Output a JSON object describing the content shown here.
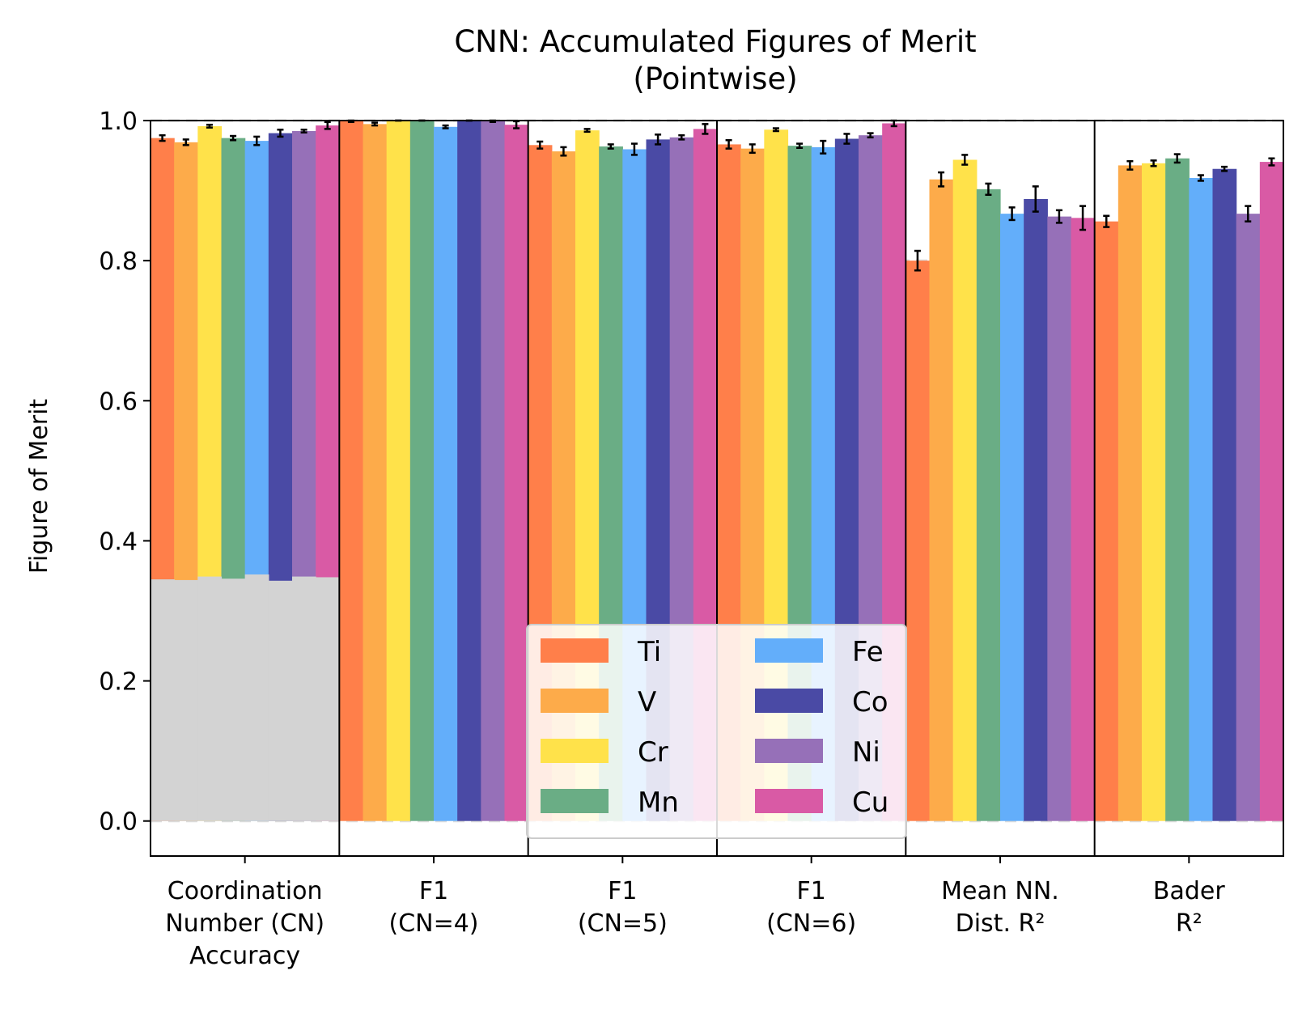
{
  "chart_data": {
    "type": "bar",
    "title": "CNN: Accumulated Figures of Merit",
    "subtitle": "(Pointwise)",
    "ylabel": "Figure of Merit",
    "xlabel": "",
    "ylim": [
      -0.05,
      1.0
    ],
    "yticks": [
      "0.0",
      "0.2",
      "0.4",
      "0.6",
      "0.8",
      "1.0"
    ],
    "grid": "horizontal dashed",
    "legend_position": "bottom-center",
    "categories": [
      {
        "lines": [
          "Coordination",
          "Number (CN)",
          "Accuracy"
        ]
      },
      {
        "lines": [
          "F1",
          "(CN=4)"
        ]
      },
      {
        "lines": [
          "F1",
          "(CN=5)"
        ]
      },
      {
        "lines": [
          "F1",
          "(CN=6)"
        ]
      },
      {
        "lines": [
          "Mean NN.",
          "Dist. R²"
        ]
      },
      {
        "lines": [
          "Bader",
          "R²"
        ]
      }
    ],
    "series": [
      {
        "name": "Ti",
        "color": "#ff7f4a",
        "values": [
          0.975,
          0.999,
          0.965,
          0.966,
          0.8,
          0.856
        ],
        "errors": [
          0.004,
          0.001,
          0.005,
          0.006,
          0.014,
          0.008
        ]
      },
      {
        "name": "V",
        "color": "#fdab4a",
        "values": [
          0.969,
          0.995,
          0.956,
          0.96,
          0.916,
          0.936
        ],
        "errors": [
          0.004,
          0.002,
          0.006,
          0.006,
          0.01,
          0.006
        ]
      },
      {
        "name": "Cr",
        "color": "#ffe24a",
        "values": [
          0.992,
          1.0,
          0.986,
          0.987,
          0.944,
          0.939
        ],
        "errors": [
          0.002,
          0.0,
          0.002,
          0.002,
          0.007,
          0.004
        ]
      },
      {
        "name": "Mn",
        "color": "#6aad85",
        "values": [
          0.975,
          1.0,
          0.963,
          0.964,
          0.902,
          0.946
        ],
        "errors": [
          0.003,
          0.0,
          0.003,
          0.003,
          0.008,
          0.006
        ]
      },
      {
        "name": "Fe",
        "color": "#63aefa",
        "values": [
          0.971,
          0.991,
          0.959,
          0.962,
          0.867,
          0.918
        ],
        "errors": [
          0.006,
          0.002,
          0.008,
          0.009,
          0.009,
          0.004
        ]
      },
      {
        "name": "Co",
        "color": "#4a4aa5",
        "values": [
          0.982,
          1.0,
          0.973,
          0.974,
          0.888,
          0.931
        ],
        "errors": [
          0.005,
          0.0,
          0.007,
          0.007,
          0.018,
          0.003
        ]
      },
      {
        "name": "Ni",
        "color": "#9670b8",
        "values": [
          0.985,
          0.999,
          0.976,
          0.979,
          0.863,
          0.867
        ],
        "errors": [
          0.002,
          0.001,
          0.003,
          0.003,
          0.009,
          0.011
        ]
      },
      {
        "name": "Cu",
        "color": "#d95aa5",
        "values": [
          0.993,
          0.994,
          0.988,
          0.996,
          0.861,
          0.941
        ],
        "errors": [
          0.005,
          0.005,
          0.007,
          0.004,
          0.017,
          0.005
        ]
      }
    ],
    "baseline": {
      "category": "Coordination Number (CN) Accuracy",
      "color": "#d3d3d3",
      "values": [
        0.345,
        0.344,
        0.349,
        0.346,
        0.352,
        0.343,
        0.349,
        0.348
      ]
    }
  }
}
